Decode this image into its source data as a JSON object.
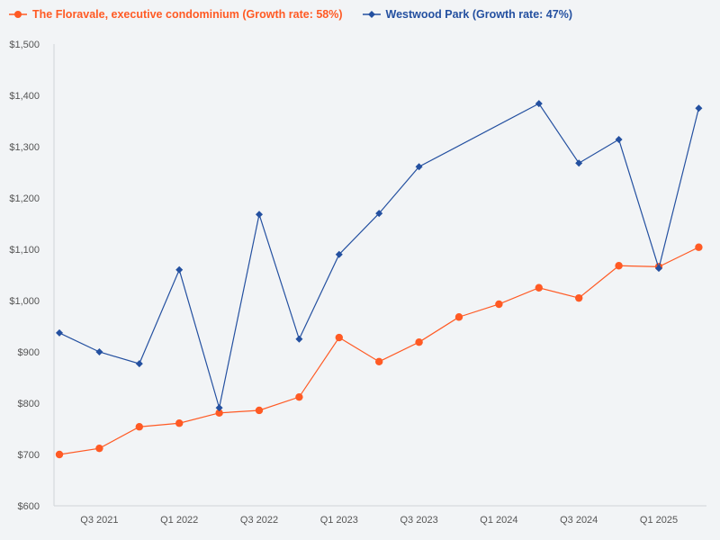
{
  "chart_data": {
    "type": "line",
    "title": "",
    "xlabel": "",
    "ylabel": "",
    "ylim": [
      600,
      1500
    ],
    "yticks": [
      "$600",
      "$700",
      "$800",
      "$900",
      "$1,000",
      "$1,100",
      "$1,200",
      "$1,300",
      "$1,400",
      "$1,500"
    ],
    "x": [
      "Q2 2021",
      "Q3 2021",
      "Q4 2021",
      "Q1 2022",
      "Q2 2022",
      "Q3 2022",
      "Q4 2022",
      "Q1 2023",
      "Q2 2023",
      "Q3 2023",
      "Q4 2023",
      "Q1 2024",
      "Q2 2024",
      "Q3 2024",
      "Q4 2024",
      "Q1 2025",
      "Q2 2025"
    ],
    "xtick_labels": [
      "Q3 2021",
      "Q1 2022",
      "Q3 2022",
      "Q1 2023",
      "Q3 2023",
      "Q1 2024",
      "Q3 2024",
      "Q1 2025"
    ],
    "grid": false,
    "legend_position": "top-left",
    "series": [
      {
        "name": "The Floravale, executive condominium (Growth rate: 58%)",
        "color": "#ff5a24",
        "marker": "circle",
        "values": [
          700,
          712,
          754,
          761,
          781,
          786,
          812,
          928,
          881,
          919,
          968,
          993,
          1025,
          1005,
          1068,
          1066,
          1104
        ]
      },
      {
        "name": "Westwood Park (Growth rate: 47%)",
        "color": "#2450a0",
        "marker": "diamond",
        "values": [
          937,
          900,
          877,
          1060,
          791,
          1168,
          925,
          1090,
          1170,
          1261,
          null,
          null,
          1384,
          1268,
          1314,
          1063,
          1375
        ]
      }
    ]
  }
}
